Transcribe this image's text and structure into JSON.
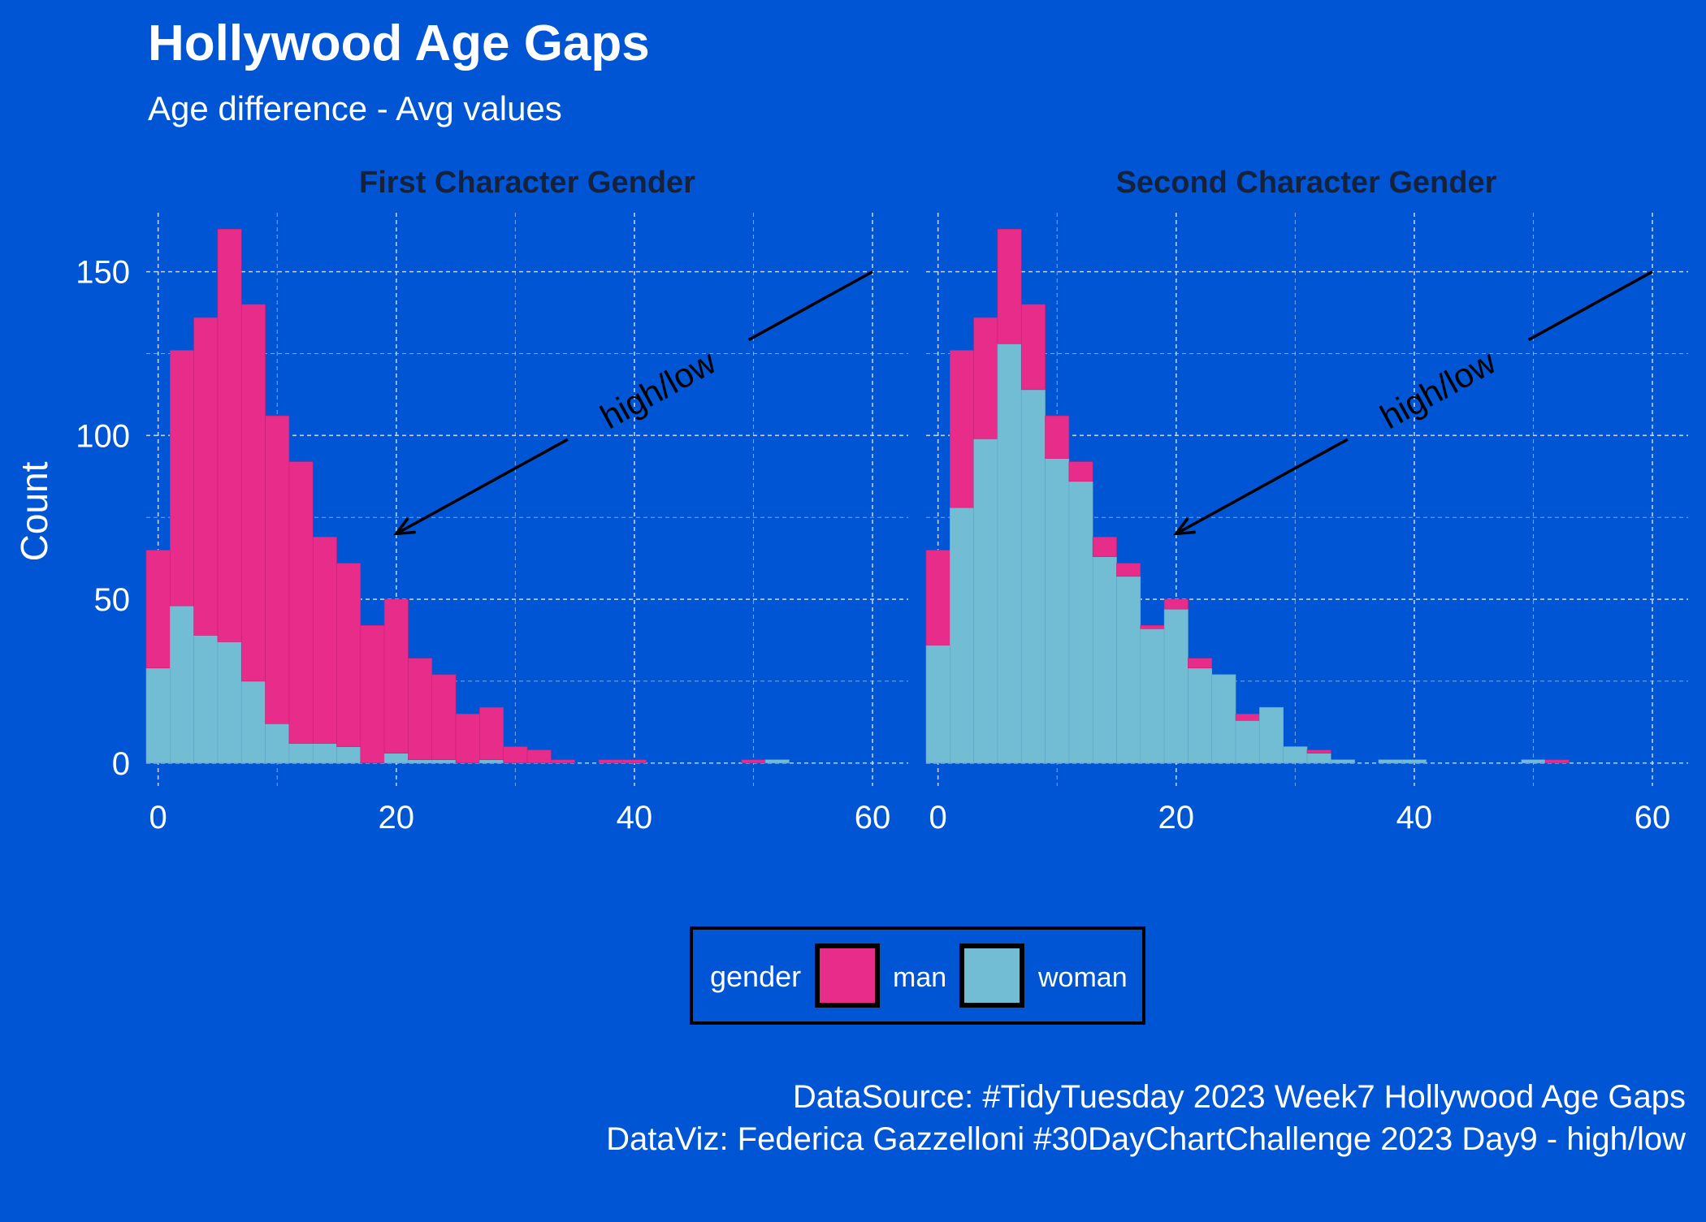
{
  "colors": {
    "background": "#0055d4",
    "man": "#e82c8a",
    "woman": "#72bcd4",
    "legend_border": "#000000",
    "grid": "#cfe0ff",
    "text": "#ffffff",
    "strip_text": "#16223a"
  },
  "header": {
    "title": "Hollywood Age Gaps",
    "subtitle": "Age difference - Avg values"
  },
  "caption": {
    "line1": "DataSource: #TidyTuesday 2023 Week7 Hollywood Age Gaps",
    "line2": "DataViz: Federica Gazzelloni #30DayChartChallenge 2023 Day9 - high/low"
  },
  "legend": {
    "title": "gender",
    "items": [
      "man",
      "woman"
    ]
  },
  "chart_data": {
    "type": "bar",
    "subtype": "stacked-histogram",
    "ylabel": "Count",
    "xlabel": "",
    "xlim": [
      -1,
      63
    ],
    "ylim": [
      -7,
      168
    ],
    "xticks": [
      0,
      20,
      40,
      60
    ],
    "yticks": [
      0,
      50,
      100,
      150
    ],
    "bin_width": 2,
    "bin_starts": [
      -1,
      1,
      3,
      5,
      7,
      9,
      11,
      13,
      15,
      17,
      19,
      21,
      23,
      25,
      27,
      29,
      31,
      33,
      35,
      37,
      39,
      41,
      43,
      45,
      47,
      49,
      51
    ],
    "annotation": {
      "text": "high/low",
      "from": [
        60,
        150
      ],
      "to": [
        20,
        70
      ]
    },
    "panels": [
      {
        "strip": "First Character Gender",
        "series": [
          {
            "name": "woman",
            "values": [
              29,
              48,
              39,
              37,
              25,
              12,
              6,
              6,
              5,
              0,
              3,
              1,
              1,
              0,
              1,
              0,
              0,
              0,
              0,
              0,
              0,
              0,
              0,
              0,
              0,
              0,
              1
            ]
          },
          {
            "name": "man",
            "values": [
              36,
              78,
              97,
              126,
              115,
              94,
              86,
              63,
              56,
              42,
              47,
              31,
              26,
              15,
              16,
              5,
              4,
              1,
              0,
              1,
              1,
              0,
              0,
              0,
              0,
              1,
              0
            ]
          }
        ]
      },
      {
        "strip": "Second Character Gender",
        "series": [
          {
            "name": "woman",
            "values": [
              36,
              78,
              99,
              128,
              114,
              93,
              86,
              63,
              57,
              41,
              47,
              29,
              27,
              13,
              17,
              5,
              3,
              1,
              0,
              1,
              1,
              0,
              0,
              0,
              0,
              1,
              0
            ]
          },
          {
            "name": "man",
            "values": [
              29,
              48,
              37,
              35,
              26,
              13,
              6,
              6,
              4,
              1,
              3,
              3,
              0,
              2,
              0,
              0,
              1,
              0,
              0,
              0,
              0,
              0,
              0,
              0,
              0,
              0,
              1
            ]
          }
        ]
      }
    ]
  }
}
